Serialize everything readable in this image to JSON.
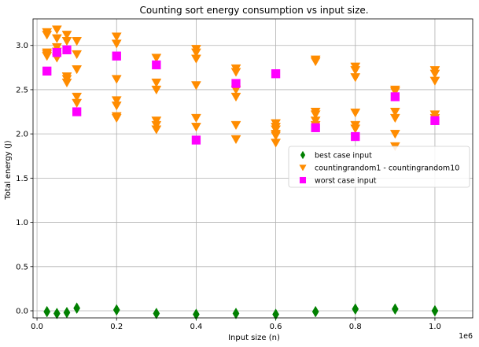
{
  "chart_data": {
    "type": "scatter",
    "title": "Counting sort energy consumption vs input size.",
    "xlabel": "Input size (n)",
    "ylabel": "Total energy (J)",
    "x_offset_label": "1e6",
    "xlim": [
      -0.01,
      1.095
    ],
    "ylim": [
      -0.08,
      3.3
    ],
    "x_ticks": [
      0.0,
      0.2,
      0.4,
      0.6,
      0.8,
      1.0
    ],
    "x_tick_labels": [
      "0.0",
      "0.2",
      "0.4",
      "0.6",
      "0.8",
      "1.0"
    ],
    "y_ticks": [
      0.0,
      0.5,
      1.0,
      1.5,
      2.0,
      2.5,
      3.0
    ],
    "y_tick_labels": [
      "0.0",
      "0.5",
      "1.0",
      "1.5",
      "2.0",
      "2.5",
      "3.0"
    ],
    "grid": true,
    "legend_position": "center-right",
    "series": [
      {
        "name": "best case input",
        "marker": "diamond",
        "color": "#008000",
        "x": [
          0.025,
          0.05,
          0.075,
          0.1,
          0.2,
          0.3,
          0.4,
          0.5,
          0.6,
          0.7,
          0.8,
          0.9,
          1.0
        ],
        "y": [
          -0.01,
          -0.03,
          -0.02,
          0.03,
          0.01,
          -0.03,
          -0.04,
          -0.03,
          -0.04,
          -0.01,
          0.02,
          0.02,
          0.0
        ]
      },
      {
        "name": "countingrandom1 - countingrandom10",
        "marker": "triangle-down",
        "color": "#ff8c00",
        "x": [
          0.025,
          0.025,
          0.025,
          0.025,
          0.025,
          0.05,
          0.05,
          0.05,
          0.05,
          0.05,
          0.075,
          0.075,
          0.075,
          0.075,
          0.075,
          0.1,
          0.1,
          0.1,
          0.1,
          0.1,
          0.2,
          0.2,
          0.2,
          0.2,
          0.2,
          0.2,
          0.2,
          0.3,
          0.3,
          0.3,
          0.3,
          0.3,
          0.3,
          0.4,
          0.4,
          0.4,
          0.4,
          0.4,
          0.4,
          0.5,
          0.5,
          0.5,
          0.5,
          0.5,
          0.5,
          0.6,
          0.6,
          0.6,
          0.6,
          0.6,
          0.6,
          0.7,
          0.7,
          0.7,
          0.7,
          0.7,
          0.7,
          0.8,
          0.8,
          0.8,
          0.8,
          0.8,
          0.8,
          0.9,
          0.9,
          0.9,
          0.9,
          0.9,
          0.9,
          1.0,
          1.0,
          1.0,
          1.0,
          1.0
        ],
        "y": [
          3.15,
          3.12,
          2.92,
          2.9,
          2.88,
          3.18,
          3.08,
          2.98,
          2.93,
          2.86,
          3.12,
          3.05,
          2.65,
          2.62,
          2.58,
          3.05,
          2.9,
          2.73,
          2.42,
          2.35,
          3.1,
          3.02,
          2.62,
          2.38,
          2.32,
          2.2,
          2.18,
          2.86,
          2.58,
          2.5,
          2.15,
          2.1,
          2.05,
          2.96,
          2.92,
          2.85,
          2.55,
          2.18,
          2.08,
          2.74,
          2.7,
          2.5,
          2.42,
          2.1,
          1.94,
          2.12,
          2.08,
          2.05,
          2.0,
          1.98,
          1.9,
          2.84,
          2.82,
          2.25,
          2.22,
          2.15,
          2.1,
          2.76,
          2.72,
          2.64,
          2.24,
          2.1,
          2.06,
          2.5,
          2.48,
          2.25,
          2.18,
          2.0,
          1.86,
          2.72,
          2.68,
          2.6,
          2.22,
          2.18
        ]
      },
      {
        "name": "worst case input",
        "marker": "square",
        "color": "#ff00ff",
        "x": [
          0.025,
          0.05,
          0.075,
          0.1,
          0.2,
          0.3,
          0.4,
          0.5,
          0.6,
          0.7,
          0.8,
          0.9,
          1.0
        ],
        "y": [
          2.71,
          2.92,
          2.95,
          2.25,
          2.88,
          2.78,
          1.93,
          2.57,
          2.68,
          2.07,
          1.97,
          2.42,
          2.15
        ]
      }
    ]
  }
}
